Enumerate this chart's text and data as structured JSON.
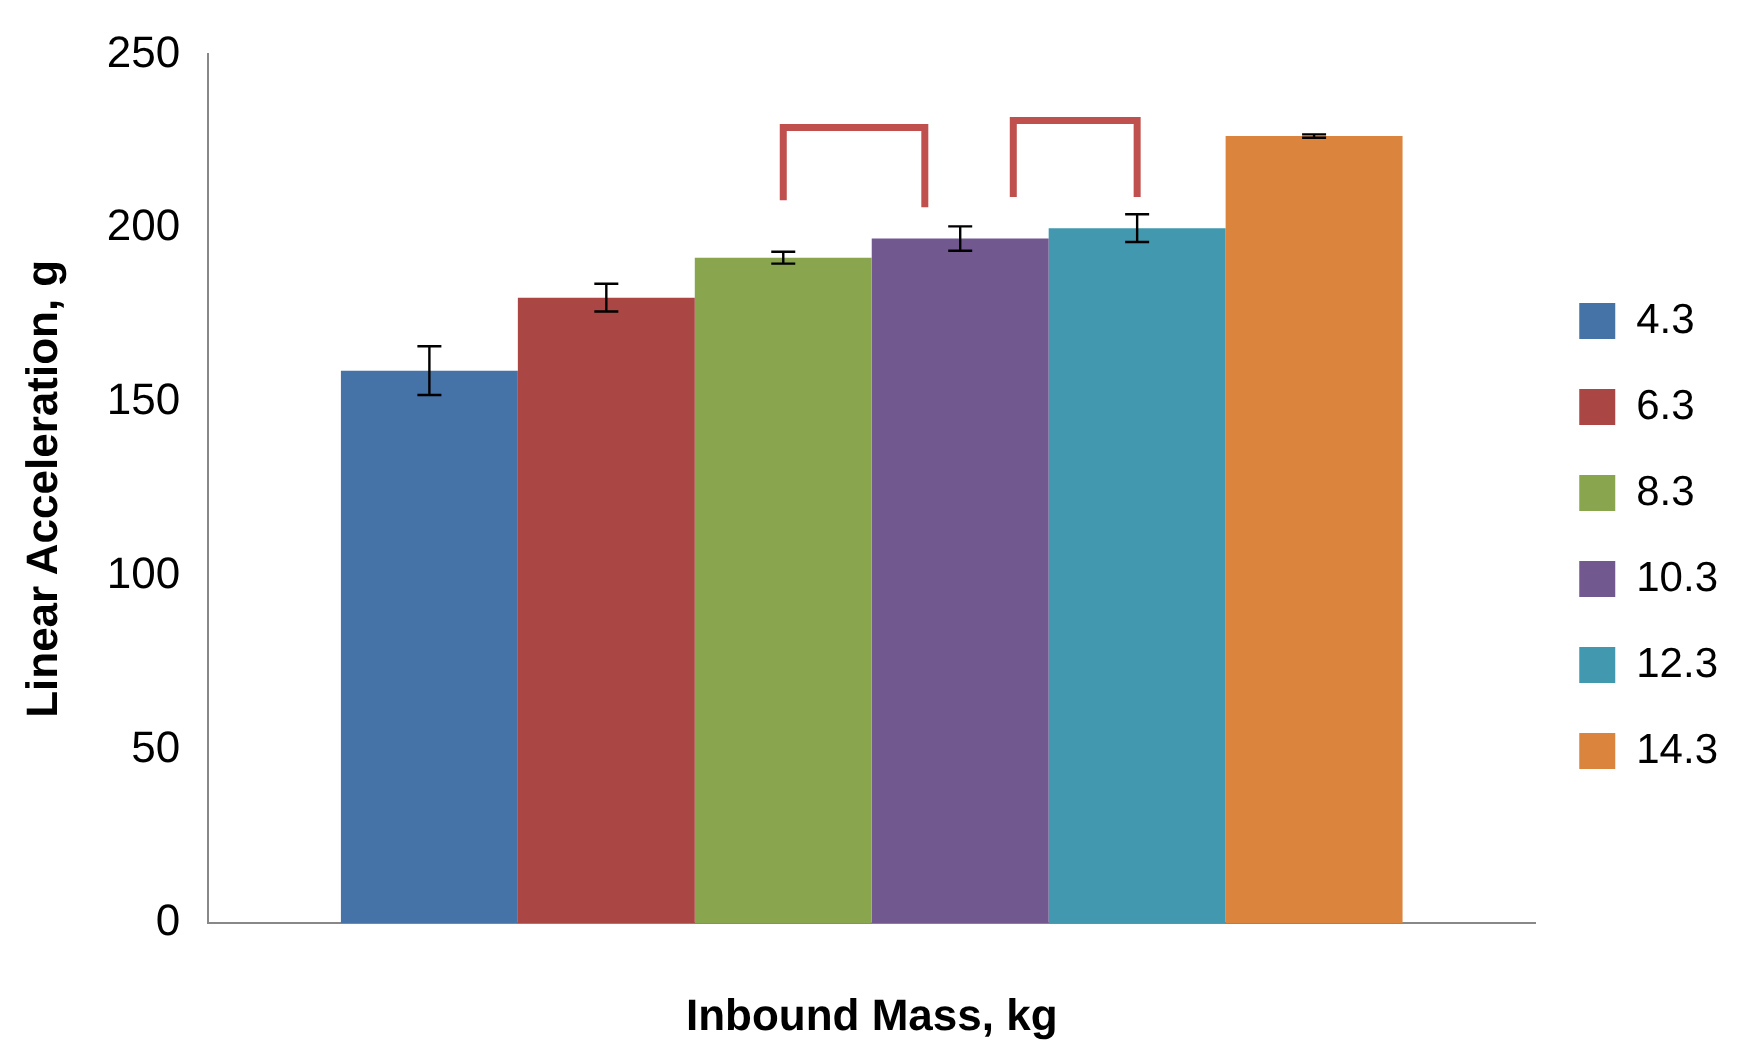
{
  "chart_data": {
    "type": "bar",
    "xlabel": "Inbound Mass, kg",
    "ylabel": "Linear Acceleration, g",
    "categories": [
      null
    ],
    "series": [
      {
        "name": "4.3",
        "color": "#4572a7",
        "values": [
          159
        ],
        "errors": [
          7
        ]
      },
      {
        "name": "6.3",
        "color": "#aa4643",
        "values": [
          180
        ],
        "errors": [
          4
        ]
      },
      {
        "name": "8.3",
        "color": "#89a54e",
        "values": [
          191.5
        ],
        "errors": [
          1.7
        ]
      },
      {
        "name": "10.3",
        "color": "#71588f",
        "values": [
          197
        ],
        "errors": [
          3.5
        ]
      },
      {
        "name": "12.3",
        "color": "#4198af",
        "values": [
          200
        ],
        "errors": [
          4
        ]
      },
      {
        "name": "14.3",
        "color": "#db843d",
        "values": [
          226.5
        ],
        "errors": [
          0.5
        ]
      }
    ],
    "ylim": [
      0,
      250
    ],
    "yticks": [
      0,
      50,
      100,
      150,
      200,
      250
    ],
    "grid": false,
    "legend": "right"
  }
}
